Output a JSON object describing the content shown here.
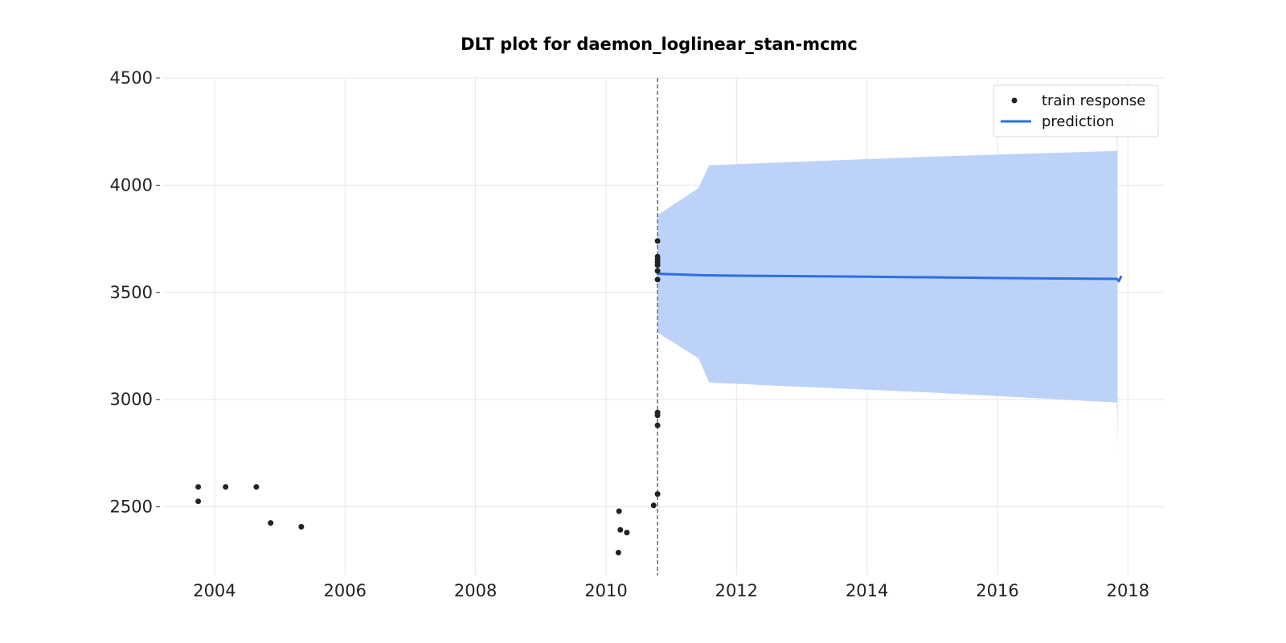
{
  "chart_data": {
    "type": "line",
    "title": "DLT plot for daemon_loglinear_stan-mcmc",
    "xlabel": "",
    "ylabel": "",
    "xlim": [
      2003.2,
      2018.55
    ],
    "ylim": [
      2180,
      4500
    ],
    "x_ticks": [
      {
        "value": 2004,
        "label": "2004"
      },
      {
        "value": 2006,
        "label": "2006"
      },
      {
        "value": 2008,
        "label": "2008"
      },
      {
        "value": 2010,
        "label": "2010"
      },
      {
        "value": 2012,
        "label": "2012"
      },
      {
        "value": 2014,
        "label": "2014"
      },
      {
        "value": 2016,
        "label": "2016"
      },
      {
        "value": 2018,
        "label": "2018"
      }
    ],
    "y_ticks": [
      {
        "value": 2500,
        "label": "2500"
      },
      {
        "value": 3000,
        "label": "3000"
      },
      {
        "value": 3500,
        "label": "3500"
      },
      {
        "value": 4000,
        "label": "4000"
      },
      {
        "value": 4500,
        "label": "4500"
      }
    ],
    "grid": true,
    "legend": {
      "placement": "top-right",
      "entries": [
        {
          "label": "train response",
          "kind": "point"
        },
        {
          "label": "prediction",
          "kind": "line"
        }
      ]
    },
    "cutoff_x": 2010.79,
    "series": [
      {
        "name": "train response",
        "kind": "scatter",
        "color": "#222222",
        "points": [
          {
            "x": 2003.75,
            "y": 2593
          },
          {
            "x": 2003.75,
            "y": 2526
          },
          {
            "x": 2004.17,
            "y": 2593
          },
          {
            "x": 2004.64,
            "y": 2593
          },
          {
            "x": 2004.86,
            "y": 2425
          },
          {
            "x": 2005.33,
            "y": 2407
          },
          {
            "x": 2010.2,
            "y": 2480
          },
          {
            "x": 2010.22,
            "y": 2393
          },
          {
            "x": 2010.19,
            "y": 2287
          },
          {
            "x": 2010.32,
            "y": 2380
          },
          {
            "x": 2010.73,
            "y": 2507
          },
          {
            "x": 2010.79,
            "y": 2560
          },
          {
            "x": 2010.79,
            "y": 2880
          },
          {
            "x": 2010.79,
            "y": 2927
          },
          {
            "x": 2010.79,
            "y": 2940
          },
          {
            "x": 2010.79,
            "y": 3560
          },
          {
            "x": 2010.79,
            "y": 3600
          },
          {
            "x": 2010.79,
            "y": 3627
          },
          {
            "x": 2010.79,
            "y": 3640
          },
          {
            "x": 2010.79,
            "y": 3653
          },
          {
            "x": 2010.79,
            "y": 3667
          },
          {
            "x": 2010.79,
            "y": 3740
          }
        ]
      },
      {
        "name": "prediction",
        "kind": "line",
        "color": "#2b6fe4",
        "points": [
          {
            "x": 2010.79,
            "y": 3587
          },
          {
            "x": 2011.5,
            "y": 3580
          },
          {
            "x": 2012,
            "y": 3578
          },
          {
            "x": 2014,
            "y": 3573
          },
          {
            "x": 2016,
            "y": 3567
          },
          {
            "x": 2017.83,
            "y": 3563
          },
          {
            "x": 2017.86,
            "y": 3553
          },
          {
            "x": 2017.9,
            "y": 3577
          }
        ]
      }
    ],
    "prediction_interval": {
      "color": "#bcd2f8",
      "points": [
        {
          "x": 2010.79,
          "upper": 3860,
          "lower": 3313
        },
        {
          "x": 2011.42,
          "upper": 3987,
          "lower": 3193
        },
        {
          "x": 2011.58,
          "upper": 4093,
          "lower": 3080
        },
        {
          "x": 2013,
          "upper": 4110,
          "lower": 3060
        },
        {
          "x": 2015,
          "upper": 4133,
          "lower": 3033
        },
        {
          "x": 2017.83,
          "upper": 4160,
          "lower": 2987
        },
        {
          "x": 2017.84,
          "upper": 4373,
          "lower": 2767
        }
      ]
    }
  }
}
